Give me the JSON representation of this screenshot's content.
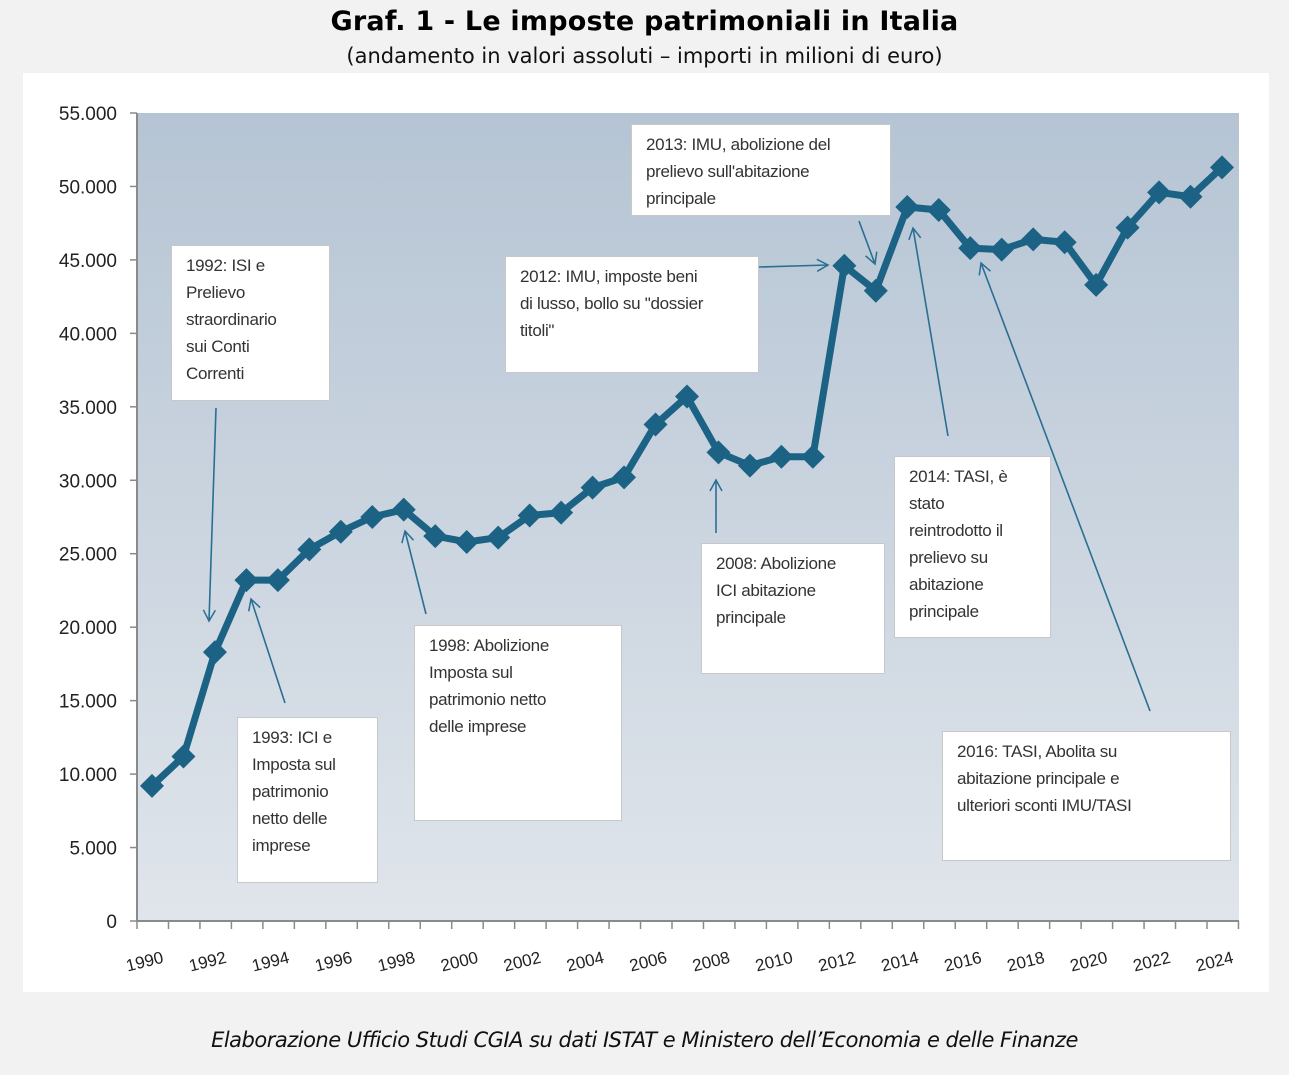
{
  "header": {
    "title": "Graf. 1 - Le imposte patrimoniali in Italia",
    "subtitle": "(andamento in valori assoluti – importi in milioni di euro)"
  },
  "footer": {
    "source": "Elaborazione Ufficio Studi CGIA su dati ISTAT e Ministero dell’Economia e delle Finanze"
  },
  "colors": {
    "line": "#1b6285",
    "plot_top": "#b5c4d4",
    "plot_bottom": "#e0e5eb",
    "arrow": "#2a6f92"
  },
  "chart_data": {
    "type": "line",
    "title": "Graf. 1 - Le imposte patrimoniali in Italia",
    "subtitle": "(andamento in valori assoluti – importi in milioni di euro)",
    "xlabel": "",
    "ylabel": "",
    "ylim": [
      0,
      55000
    ],
    "xlim": [
      1990,
      2024
    ],
    "grid": false,
    "legend": "none",
    "y_ticks": [
      {
        "value": 0,
        "label": "0"
      },
      {
        "value": 5000,
        "label": "5.000"
      },
      {
        "value": 10000,
        "label": "10.000"
      },
      {
        "value": 15000,
        "label": "15.000"
      },
      {
        "value": 20000,
        "label": "20.000"
      },
      {
        "value": 25000,
        "label": "25.000"
      },
      {
        "value": 30000,
        "label": "30.000"
      },
      {
        "value": 35000,
        "label": "35.000"
      },
      {
        "value": 40000,
        "label": "40.000"
      },
      {
        "value": 45000,
        "label": "45.000"
      },
      {
        "value": 50000,
        "label": "50.000"
      },
      {
        "value": 55000,
        "label": "55.000"
      }
    ],
    "x_tick_labels": [
      "1990",
      "1992",
      "1994",
      "1996",
      "1998",
      "2000",
      "2002",
      "2004",
      "2006",
      "2008",
      "2010",
      "2012",
      "2014",
      "2016",
      "2018",
      "2020",
      "2022",
      "2024"
    ],
    "x": [
      1990,
      1991,
      1992,
      1993,
      1994,
      1995,
      1996,
      1997,
      1998,
      1999,
      2000,
      2001,
      2002,
      2003,
      2004,
      2005,
      2006,
      2007,
      2008,
      2009,
      2010,
      2011,
      2012,
      2013,
      2014,
      2015,
      2016,
      2017,
      2018,
      2019,
      2020,
      2021,
      2022,
      2023,
      2024
    ],
    "series": [
      {
        "name": "Imposte patrimoniali",
        "marker": "diamond",
        "values": [
          9200,
          11200,
          18300,
          23200,
          23200,
          25300,
          26500,
          27500,
          28000,
          26200,
          25800,
          26100,
          27600,
          27800,
          29500,
          30200,
          33800,
          35700,
          31900,
          31000,
          31600,
          31600,
          44600,
          42900,
          48600,
          48400,
          45800,
          45700,
          46400,
          46200,
          43300,
          47200,
          49600,
          49300,
          51300
        ]
      }
    ],
    "annotations": [
      {
        "year": 1992,
        "text": "1992: ISI e\nPrelievo\nstraordinario\nsui Conti\nCorrenti"
      },
      {
        "year": 1993,
        "text": "1993: ICI e\nImposta sul\npatrimonio\nnetto delle\nimprese"
      },
      {
        "year": 1998,
        "text": "1998: Abolizione\nImposta sul\npatrimonio netto\ndelle imprese"
      },
      {
        "year": 2008,
        "text": "2008: Abolizione\nICI abitazione\nprincipale"
      },
      {
        "year": 2012,
        "text": "2012: IMU, imposte beni\ndi lusso,  bollo su \"dossier\ntitoli\""
      },
      {
        "year": 2013,
        "text": "2013: IMU, abolizione del\nprelievo sull'abitazione\nprincipale"
      },
      {
        "year": 2014,
        "text": "2014: TASI, è\nstato\nreintrodotto il\nprelievo su\nabitazione\nprincipale"
      },
      {
        "year": 2016,
        "text": "2016: TASI, Abolita su\nabitazione principale e\nulteriori sconti IMU/TASI"
      }
    ]
  }
}
